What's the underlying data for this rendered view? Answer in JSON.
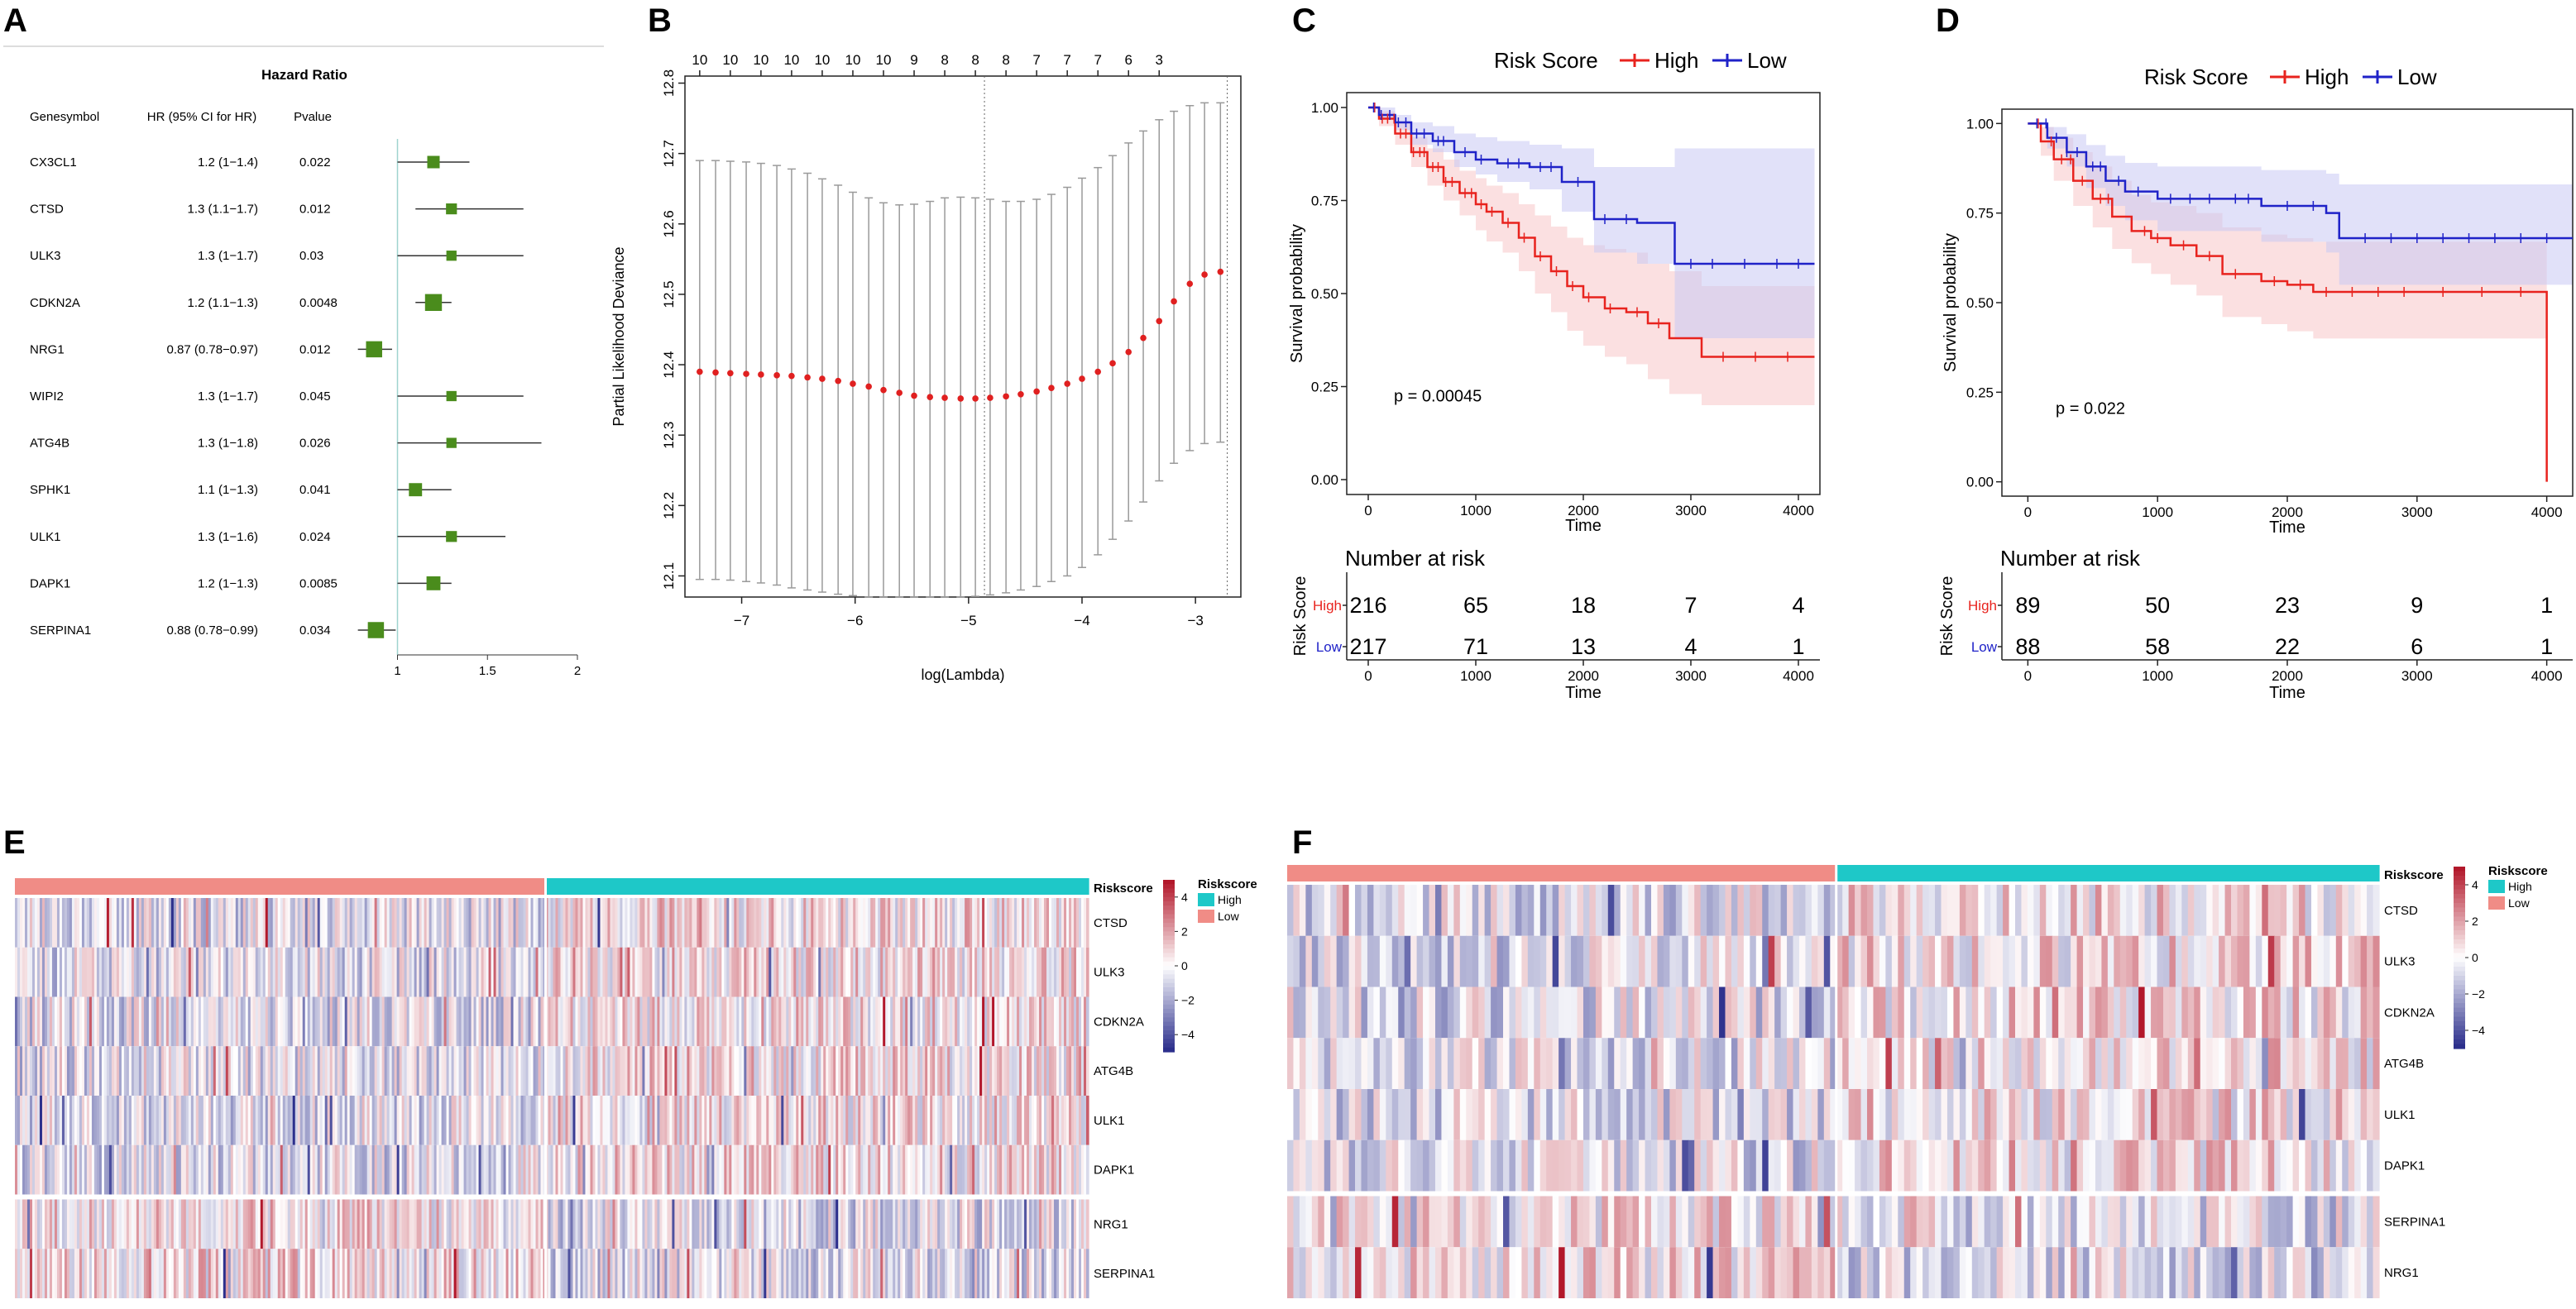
{
  "panel_labels": [
    "A",
    "B",
    "C",
    "D",
    "E",
    "F"
  ],
  "colors": {
    "forest_box": "#4a8c1c",
    "cv_point": "#e02020",
    "cv_error": "#9a9a9a",
    "high": "#e8231e",
    "low": "#1f22c8",
    "high_band": "#f7c6c8",
    "low_band": "#c8c8f4",
    "heat_pos": "#b2182b",
    "heat_neg": "#2c2f8c",
    "group_high": "#1ec8c8",
    "group_low": "#f08c86"
  },
  "chart_data": [
    {
      "panel": "A",
      "type": "forest",
      "title": "Hazard Ratio",
      "col_headers": [
        "Genesymbol",
        "HR (95% CI for HR)",
        "Pvalue"
      ],
      "genes": [
        "CX3CL1",
        "CTSD",
        "ULK3",
        "CDKN2A",
        "NRG1",
        "WIPI2",
        "ATG4B",
        "SPHK1",
        "ULK1",
        "DAPK1",
        "SERPINA1"
      ],
      "hr_text": [
        "1.2 (1−1.4)",
        "1.3 (1.1−1.7)",
        "1.3 (1−1.7)",
        "1.2 (1.1−1.3)",
        "0.87 (0.78−0.97)",
        "1.3 (1−1.7)",
        "1.3 (1−1.8)",
        "1.1 (1−1.3)",
        "1.3 (1−1.6)",
        "1.2 (1−1.3)",
        "0.88 (0.78−0.99)"
      ],
      "pvalues": [
        "0.022",
        "0.012",
        "0.03",
        "0.0048",
        "0.012",
        "0.045",
        "0.026",
        "0.041",
        "0.024",
        "0.0085",
        "0.034"
      ],
      "hr": [
        1.2,
        1.3,
        1.3,
        1.2,
        0.87,
        1.3,
        1.3,
        1.1,
        1.3,
        1.2,
        0.88
      ],
      "ci_low": [
        1.0,
        1.1,
        1.0,
        1.1,
        0.78,
        1.0,
        1.0,
        1.0,
        1.0,
        1.0,
        0.78
      ],
      "ci_high": [
        1.4,
        1.7,
        1.7,
        1.3,
        0.97,
        1.7,
        1.8,
        1.3,
        1.6,
        1.3,
        0.99
      ],
      "box_weight": [
        1.0,
        0.8,
        0.7,
        1.6,
        1.5,
        0.7,
        0.7,
        1.1,
        0.8,
        1.2,
        1.5
      ],
      "xlim": [
        0.8,
        2.0
      ],
      "xticks": [
        1,
        1.5,
        2
      ],
      "xtick_labels": [
        "1",
        "1.5",
        "2"
      ],
      "reference_line": 1
    },
    {
      "panel": "B",
      "type": "scatter",
      "subtype": "lasso-cv",
      "xlabel": "log(Lambda)",
      "ylabel": "Partial Likelihood Deviance",
      "xlim": [
        -7.5,
        -2.6
      ],
      "ylim": [
        12.07,
        12.81
      ],
      "xticks": [
        -7,
        -6,
        -5,
        -4,
        -3
      ],
      "xtick_labels": [
        "−7",
        "−6",
        "−5",
        "−4",
        "−3"
      ],
      "yticks": [
        12.1,
        12.2,
        12.3,
        12.4,
        12.5,
        12.6,
        12.7,
        12.8
      ],
      "ytick_labels": [
        "12.1",
        "12.2",
        "12.3",
        "12.4",
        "12.5",
        "12.6",
        "12.7",
        "12.8"
      ],
      "top_axis_counts": [
        "10",
        "10",
        "10",
        "10",
        "10",
        "10",
        "10",
        "9",
        "8",
        "8",
        "8",
        "7",
        "7",
        "7",
        "6",
        "3"
      ],
      "top_axis_x": [
        -7.37,
        -7.1,
        -6.83,
        -6.56,
        -6.29,
        -6.02,
        -5.75,
        -5.48,
        -5.21,
        -4.94,
        -4.67,
        -4.4,
        -4.13,
        -3.86,
        -3.59,
        -3.32
      ],
      "x": [
        -7.37,
        -7.23,
        -7.1,
        -6.96,
        -6.83,
        -6.69,
        -6.56,
        -6.42,
        -6.29,
        -6.15,
        -6.02,
        -5.88,
        -5.75,
        -5.61,
        -5.48,
        -5.34,
        -5.21,
        -5.07,
        -4.94,
        -4.81,
        -4.67,
        -4.54,
        -4.4,
        -4.27,
        -4.13,
        -4.0,
        -3.86,
        -3.73,
        -3.59,
        -3.46,
        -3.32,
        -3.19,
        -3.05,
        -2.92,
        -2.78
      ],
      "y": [
        12.39,
        12.389,
        12.388,
        12.387,
        12.386,
        12.385,
        12.384,
        12.382,
        12.38,
        12.377,
        12.373,
        12.369,
        12.364,
        12.36,
        12.356,
        12.354,
        12.353,
        12.352,
        12.352,
        12.353,
        12.355,
        12.358,
        12.362,
        12.367,
        12.373,
        12.38,
        12.39,
        12.402,
        12.418,
        12.438,
        12.462,
        12.49,
        12.515,
        12.528,
        12.532
      ],
      "err_low": [
        12.095,
        12.095,
        12.094,
        12.092,
        12.09,
        12.087,
        12.083,
        12.08,
        12.077,
        12.074,
        12.072,
        12.07,
        12.07,
        12.07,
        12.07,
        12.07,
        12.07,
        12.07,
        12.071,
        12.073,
        12.076,
        12.08,
        12.085,
        12.092,
        12.1,
        12.112,
        12.13,
        12.152,
        12.178,
        12.205,
        12.235,
        12.26,
        12.278,
        12.288,
        12.29
      ],
      "err_high": [
        12.69,
        12.69,
        12.689,
        12.688,
        12.686,
        12.683,
        12.678,
        12.672,
        12.664,
        12.655,
        12.645,
        12.637,
        12.63,
        12.627,
        12.628,
        12.632,
        12.637,
        12.638,
        12.637,
        12.635,
        12.632,
        12.632,
        12.635,
        12.642,
        12.652,
        12.665,
        12.68,
        12.697,
        12.715,
        12.732,
        12.748,
        12.76,
        12.768,
        12.772,
        12.772
      ],
      "vlines": [
        -4.86,
        -2.72
      ]
    },
    {
      "panel": "C",
      "type": "line",
      "subtype": "kaplan-meier",
      "legend_title": "Risk Score",
      "legend": [
        "High",
        "Low"
      ],
      "xlabel": "Time",
      "ylabel": "Survival probability",
      "xlim": [
        -200,
        4200
      ],
      "ylim": [
        -0.04,
        1.04
      ],
      "xticks": [
        0,
        1000,
        2000,
        3000,
        4000
      ],
      "xtick_labels": [
        "0",
        "1000",
        "2000",
        "3000",
        "4000"
      ],
      "yticks": [
        0,
        0.25,
        0.5,
        0.75,
        1
      ],
      "ytick_labels": [
        "0.00",
        "0.25",
        "0.50",
        "0.75",
        "1.00"
      ],
      "pvalue_text": "p = 0.00045",
      "pvalue_pos": [
        100,
        0.21
      ],
      "series": [
        {
          "name": "High",
          "t": [
            0,
            100,
            250,
            400,
            550,
            700,
            850,
            1000,
            1100,
            1250,
            1400,
            1550,
            1700,
            1850,
            2000,
            2200,
            2400,
            2600,
            2800,
            3000,
            3100,
            4150
          ],
          "s": [
            1.0,
            0.97,
            0.93,
            0.88,
            0.84,
            0.8,
            0.77,
            0.74,
            0.72,
            0.69,
            0.65,
            0.6,
            0.56,
            0.52,
            0.49,
            0.46,
            0.45,
            0.42,
            0.38,
            0.38,
            0.33,
            0.33
          ],
          "lo": [
            1.0,
            0.95,
            0.9,
            0.84,
            0.79,
            0.75,
            0.71,
            0.67,
            0.64,
            0.61,
            0.56,
            0.5,
            0.45,
            0.4,
            0.36,
            0.33,
            0.31,
            0.27,
            0.23,
            0.23,
            0.2,
            0.2
          ],
          "hi": [
            1.0,
            0.99,
            0.96,
            0.92,
            0.89,
            0.86,
            0.83,
            0.81,
            0.79,
            0.77,
            0.74,
            0.71,
            0.68,
            0.65,
            0.63,
            0.62,
            0.61,
            0.58,
            0.56,
            0.56,
            0.52,
            0.52
          ]
        },
        {
          "name": "Low",
          "t": [
            0,
            100,
            250,
            400,
            600,
            800,
            1000,
            1200,
            1500,
            1800,
            2100,
            2500,
            2850,
            4150
          ],
          "s": [
            1.0,
            0.98,
            0.96,
            0.93,
            0.91,
            0.88,
            0.86,
            0.85,
            0.84,
            0.8,
            0.7,
            0.69,
            0.58,
            0.58
          ],
          "lo": [
            1.0,
            0.97,
            0.94,
            0.9,
            0.88,
            0.84,
            0.82,
            0.8,
            0.78,
            0.72,
            0.61,
            0.58,
            0.38,
            0.38
          ],
          "hi": [
            1.0,
            1.0,
            0.98,
            0.96,
            0.95,
            0.93,
            0.92,
            0.91,
            0.9,
            0.89,
            0.84,
            0.84,
            0.89,
            0.89
          ]
        }
      ],
      "censor_high": [
        60,
        130,
        180,
        240,
        300,
        350,
        420,
        480,
        520,
        600,
        650,
        720,
        780,
        900,
        960,
        1050,
        1150,
        1300,
        1450,
        1600,
        1750,
        1900,
        2050,
        2250,
        2500,
        2700,
        3300,
        3600,
        3900
      ],
      "censor_low": [
        50,
        120,
        200,
        280,
        350,
        450,
        520,
        650,
        700,
        900,
        1050,
        1300,
        1400,
        1600,
        1700,
        1950,
        2200,
        2400,
        3000,
        3200,
        3500,
        3800,
        4000
      ],
      "risk_table": {
        "title": "Number at risk",
        "ylabel": "Risk Score",
        "xlabel": "Time",
        "times": [
          0,
          1000,
          2000,
          3000,
          4000
        ],
        "rows": [
          {
            "name": "High",
            "values": [
              "216",
              "65",
              "18",
              "7",
              "4"
            ]
          },
          {
            "name": "Low",
            "values": [
              "217",
              "71",
              "13",
              "4",
              "1"
            ]
          }
        ]
      }
    },
    {
      "panel": "D",
      "type": "line",
      "subtype": "kaplan-meier",
      "legend_title": "Risk Score",
      "legend": [
        "High",
        "Low"
      ],
      "xlabel": "Time",
      "ylabel": "Survival probability",
      "xlim": [
        -200,
        4200
      ],
      "ylim": [
        -0.04,
        1.04
      ],
      "xticks": [
        0,
        1000,
        2000,
        3000,
        4000
      ],
      "xtick_labels": [
        "0",
        "1000",
        "2000",
        "3000",
        "4000"
      ],
      "yticks": [
        0,
        0.25,
        0.5,
        0.75,
        1
      ],
      "ytick_labels": [
        "0.00",
        "0.25",
        "0.50",
        "0.75",
        "1.00"
      ],
      "pvalue_text": "p = 0.022",
      "pvalue_pos": [
        100,
        0.19
      ],
      "series": [
        {
          "name": "High",
          "t": [
            0,
            100,
            200,
            350,
            500,
            650,
            800,
            950,
            1100,
            1300,
            1500,
            1800,
            2000,
            2200,
            3950,
            4000
          ],
          "s": [
            1.0,
            0.95,
            0.9,
            0.84,
            0.79,
            0.74,
            0.7,
            0.68,
            0.66,
            0.63,
            0.58,
            0.56,
            0.55,
            0.53,
            0.53,
            0.0
          ],
          "lo": [
            1.0,
            0.91,
            0.84,
            0.77,
            0.71,
            0.65,
            0.61,
            0.58,
            0.55,
            0.52,
            0.46,
            0.44,
            0.42,
            0.4,
            0.4,
            0.4
          ],
          "hi": [
            1.0,
            0.99,
            0.96,
            0.92,
            0.88,
            0.84,
            0.8,
            0.78,
            0.77,
            0.75,
            0.71,
            0.69,
            0.68,
            0.67,
            0.67,
            0.67
          ]
        },
        {
          "name": "Low",
          "t": [
            0,
            150,
            300,
            450,
            600,
            750,
            1000,
            1500,
            1800,
            2300,
            2400,
            4200
          ],
          "s": [
            1.0,
            0.96,
            0.92,
            0.88,
            0.84,
            0.81,
            0.79,
            0.79,
            0.77,
            0.75,
            0.68,
            0.68
          ],
          "lo": [
            1.0,
            0.93,
            0.88,
            0.82,
            0.77,
            0.73,
            0.7,
            0.7,
            0.67,
            0.64,
            0.55,
            0.55
          ],
          "hi": [
            1.0,
            0.99,
            0.97,
            0.94,
            0.91,
            0.89,
            0.88,
            0.88,
            0.87,
            0.86,
            0.83,
            0.83
          ]
        }
      ],
      "censor_high": [
        80,
        180,
        260,
        330,
        420,
        560,
        620,
        900,
        1000,
        1200,
        1400,
        1600,
        1900,
        2100,
        2300,
        2500,
        2700,
        2900,
        3200,
        3500,
        3800
      ],
      "censor_low": [
        70,
        140,
        220,
        300,
        380,
        500,
        560,
        700,
        850,
        1100,
        1250,
        1400,
        1600,
        1700,
        2000,
        2200,
        2600,
        2800,
        3000,
        3200,
        3400,
        3600,
        3800,
        4000
      ],
      "risk_table": {
        "title": "Number at risk",
        "ylabel": "Risk Score",
        "xlabel": "Time",
        "times": [
          0,
          1000,
          2000,
          3000,
          4000
        ],
        "rows": [
          {
            "name": "High",
            "values": [
              "89",
              "50",
              "23",
              "9",
              "1"
            ]
          },
          {
            "name": "Low",
            "values": [
              "88",
              "58",
              "22",
              "6",
              "1"
            ]
          }
        ]
      }
    },
    {
      "panel": "E",
      "type": "heatmap",
      "annotation_label": "Riskscore",
      "legend_title": "Riskscore",
      "legend_items": [
        "High",
        "Low"
      ],
      "group_order": [
        "Low",
        "High"
      ],
      "group_split": 0.495,
      "genes": [
        "CTSD",
        "ULK3",
        "CDKN2A",
        "ATG4B",
        "ULK1",
        "DAPK1",
        "NRG1",
        "SERPINA1"
      ],
      "row_gap_after": 5,
      "n_columns": 433,
      "colorbar_range": [
        -5,
        5
      ],
      "colorbar_ticks": [
        4,
        2,
        0,
        -2,
        -4
      ],
      "colorbar_labels": [
        "4",
        "2",
        "0",
        "−2",
        "−4"
      ],
      "seed": 17
    },
    {
      "panel": "F",
      "type": "heatmap",
      "annotation_label": "Riskscore",
      "legend_title": "Riskscore",
      "legend_items": [
        "High",
        "Low"
      ],
      "group_order": [
        "Low",
        "High"
      ],
      "group_split": 0.5,
      "genes": [
        "CTSD",
        "ULK3",
        "CDKN2A",
        "ATG4B",
        "ULK1",
        "DAPK1",
        "SERPINA1",
        "NRG1"
      ],
      "row_gap_after": 5,
      "n_columns": 177,
      "colorbar_range": [
        -5,
        5
      ],
      "colorbar_ticks": [
        4,
        2,
        0,
        -2,
        -4
      ],
      "colorbar_labels": [
        "4",
        "2",
        "0",
        "−2",
        "−4"
      ],
      "seed": 41
    }
  ]
}
